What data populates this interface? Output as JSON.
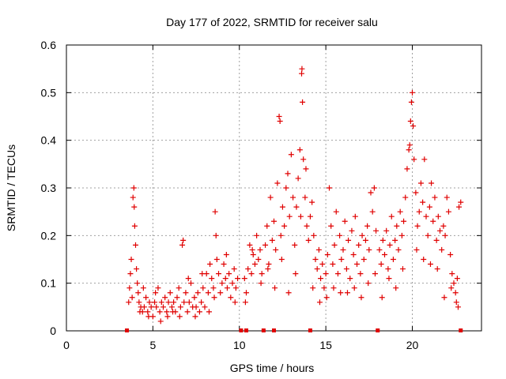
{
  "chart_data": {
    "type": "scatter",
    "title": "Day 177 of 2022, SRMTID for receiver salu",
    "xlabel": "GPS time / hours",
    "ylabel": "SRMTID / TECUs",
    "xlim": [
      0,
      24
    ],
    "ylim": [
      0,
      0.6
    ],
    "x_ticks": [
      0,
      5,
      10,
      15,
      20
    ],
    "x_tick_labels": [
      "0",
      "5",
      "10",
      "15",
      "20"
    ],
    "y_ticks": [
      0,
      0.1,
      0.2,
      0.3,
      0.4,
      0.5,
      0.6
    ],
    "y_tick_labels": [
      "0",
      "0.1",
      "0.2",
      "0.3",
      "0.4",
      "0.5",
      "0.6"
    ],
    "grid": true,
    "marker": "+",
    "color": "#e00000",
    "series": [
      {
        "name": "SRMTID",
        "points": [
          [
            3.6,
            0.06
          ],
          [
            3.65,
            0.09
          ],
          [
            3.7,
            0.12
          ],
          [
            3.75,
            0.15
          ],
          [
            3.8,
            0.07
          ],
          [
            3.85,
            0.28
          ],
          [
            3.9,
            0.3
          ],
          [
            3.92,
            0.26
          ],
          [
            3.95,
            0.22
          ],
          [
            4.0,
            0.18
          ],
          [
            4.05,
            0.13
          ],
          [
            4.1,
            0.1
          ],
          [
            4.15,
            0.08
          ],
          [
            4.2,
            0.06
          ],
          [
            4.3,
            0.05
          ],
          [
            4.4,
            0.04
          ],
          [
            4.5,
            0.05
          ],
          [
            4.6,
            0.07
          ],
          [
            4.7,
            0.04
          ],
          [
            4.8,
            0.06
          ],
          [
            4.9,
            0.05
          ],
          [
            5.0,
            0.03
          ],
          [
            5.1,
            0.06
          ],
          [
            5.2,
            0.05
          ],
          [
            5.3,
            0.09
          ],
          [
            5.4,
            0.04
          ],
          [
            5.5,
            0.06
          ],
          [
            5.6,
            0.05
          ],
          [
            5.7,
            0.07
          ],
          [
            5.8,
            0.04
          ],
          [
            5.9,
            0.06
          ],
          [
            6.0,
            0.08
          ],
          [
            6.1,
            0.05
          ],
          [
            6.2,
            0.06
          ],
          [
            6.3,
            0.04
          ],
          [
            6.4,
            0.07
          ],
          [
            6.5,
            0.09
          ],
          [
            6.6,
            0.05
          ],
          [
            6.7,
            0.18
          ],
          [
            6.75,
            0.19
          ],
          [
            6.8,
            0.06
          ],
          [
            6.9,
            0.08
          ],
          [
            7.0,
            0.04
          ],
          [
            7.1,
            0.06
          ],
          [
            7.2,
            0.1
          ],
          [
            7.3,
            0.05
          ],
          [
            7.4,
            0.07
          ],
          [
            7.5,
            0.05
          ],
          [
            7.6,
            0.08
          ],
          [
            7.7,
            0.04
          ],
          [
            7.8,
            0.06
          ],
          [
            7.9,
            0.09
          ],
          [
            8.0,
            0.05
          ],
          [
            8.1,
            0.12
          ],
          [
            8.2,
            0.08
          ],
          [
            8.3,
            0.14
          ],
          [
            8.4,
            0.11
          ],
          [
            8.5,
            0.09
          ],
          [
            8.6,
            0.25
          ],
          [
            8.65,
            0.2
          ],
          [
            8.7,
            0.15
          ],
          [
            8.8,
            0.12
          ],
          [
            8.9,
            0.08
          ],
          [
            9.0,
            0.1
          ],
          [
            9.1,
            0.14
          ],
          [
            9.2,
            0.11
          ],
          [
            9.3,
            0.09
          ],
          [
            9.4,
            0.12
          ],
          [
            9.5,
            0.07
          ],
          [
            9.6,
            0.1
          ],
          [
            9.7,
            0.13
          ],
          [
            9.8,
            0.09
          ],
          [
            9.9,
            0.11
          ],
          [
            10.3,
            0.11
          ],
          [
            10.4,
            0.08
          ],
          [
            10.5,
            0.13
          ],
          [
            10.6,
            0.18
          ],
          [
            10.7,
            0.12
          ],
          [
            10.8,
            0.16
          ],
          [
            10.9,
            0.14
          ],
          [
            11.0,
            0.2
          ],
          [
            11.1,
            0.15
          ],
          [
            11.2,
            0.17
          ],
          [
            11.3,
            0.12
          ],
          [
            11.5,
            0.18
          ],
          [
            11.6,
            0.22
          ],
          [
            11.7,
            0.14
          ],
          [
            11.8,
            0.28
          ],
          [
            11.9,
            0.19
          ],
          [
            12.0,
            0.23
          ],
          [
            12.1,
            0.17
          ],
          [
            12.2,
            0.31
          ],
          [
            12.3,
            0.45
          ],
          [
            12.35,
            0.44
          ],
          [
            12.4,
            0.2
          ],
          [
            12.5,
            0.26
          ],
          [
            12.6,
            0.22
          ],
          [
            12.7,
            0.3
          ],
          [
            12.8,
            0.33
          ],
          [
            12.9,
            0.24
          ],
          [
            13.0,
            0.37
          ],
          [
            13.1,
            0.28
          ],
          [
            13.2,
            0.18
          ],
          [
            13.3,
            0.26
          ],
          [
            13.4,
            0.32
          ],
          [
            13.5,
            0.38
          ],
          [
            13.6,
            0.54
          ],
          [
            13.62,
            0.55
          ],
          [
            13.65,
            0.48
          ],
          [
            13.7,
            0.36
          ],
          [
            13.8,
            0.28
          ],
          [
            13.9,
            0.22
          ],
          [
            14.0,
            0.19
          ],
          [
            14.1,
            0.24
          ],
          [
            14.2,
            0.27
          ],
          [
            14.3,
            0.2
          ],
          [
            14.4,
            0.15
          ],
          [
            14.5,
            0.13
          ],
          [
            14.6,
            0.17
          ],
          [
            14.7,
            0.11
          ],
          [
            14.8,
            0.14
          ],
          [
            14.9,
            0.09
          ],
          [
            15.0,
            0.12
          ],
          [
            15.1,
            0.16
          ],
          [
            15.2,
            0.3
          ],
          [
            15.3,
            0.22
          ],
          [
            15.4,
            0.14
          ],
          [
            15.5,
            0.18
          ],
          [
            15.6,
            0.25
          ],
          [
            15.7,
            0.12
          ],
          [
            15.8,
            0.2
          ],
          [
            15.9,
            0.15
          ],
          [
            16.0,
            0.17
          ],
          [
            16.1,
            0.23
          ],
          [
            16.2,
            0.13
          ],
          [
            16.3,
            0.19
          ],
          [
            16.4,
            0.11
          ],
          [
            16.5,
            0.21
          ],
          [
            16.6,
            0.16
          ],
          [
            16.7,
            0.24
          ],
          [
            16.8,
            0.14
          ],
          [
            16.9,
            0.18
          ],
          [
            17.0,
            0.12
          ],
          [
            17.1,
            0.2
          ],
          [
            17.2,
            0.15
          ],
          [
            17.3,
            0.19
          ],
          [
            17.4,
            0.22
          ],
          [
            17.5,
            0.17
          ],
          [
            17.6,
            0.29
          ],
          [
            17.7,
            0.25
          ],
          [
            17.8,
            0.3
          ],
          [
            17.9,
            0.21
          ],
          [
            18.1,
            0.17
          ],
          [
            18.2,
            0.14
          ],
          [
            18.3,
            0.19
          ],
          [
            18.4,
            0.16
          ],
          [
            18.5,
            0.21
          ],
          [
            18.6,
            0.13
          ],
          [
            18.7,
            0.18
          ],
          [
            18.8,
            0.24
          ],
          [
            18.9,
            0.15
          ],
          [
            19.0,
            0.19
          ],
          [
            19.1,
            0.22
          ],
          [
            19.2,
            0.17
          ],
          [
            19.3,
            0.25
          ],
          [
            19.4,
            0.2
          ],
          [
            19.5,
            0.23
          ],
          [
            19.6,
            0.28
          ],
          [
            19.7,
            0.34
          ],
          [
            19.8,
            0.38
          ],
          [
            19.85,
            0.39
          ],
          [
            19.9,
            0.44
          ],
          [
            19.95,
            0.48
          ],
          [
            20.0,
            0.5
          ],
          [
            20.05,
            0.43
          ],
          [
            20.1,
            0.36
          ],
          [
            20.2,
            0.29
          ],
          [
            20.3,
            0.22
          ],
          [
            20.4,
            0.25
          ],
          [
            20.5,
            0.31
          ],
          [
            20.6,
            0.27
          ],
          [
            20.7,
            0.36
          ],
          [
            20.8,
            0.24
          ],
          [
            20.9,
            0.2
          ],
          [
            21.0,
            0.26
          ],
          [
            21.1,
            0.31
          ],
          [
            21.2,
            0.23
          ],
          [
            21.3,
            0.28
          ],
          [
            21.4,
            0.19
          ],
          [
            21.5,
            0.24
          ],
          [
            21.6,
            0.21
          ],
          [
            21.7,
            0.17
          ],
          [
            21.8,
            0.22
          ],
          [
            21.9,
            0.2
          ],
          [
            22.0,
            0.28
          ],
          [
            22.1,
            0.25
          ],
          [
            22.2,
            0.16
          ],
          [
            22.3,
            0.12
          ],
          [
            22.4,
            0.1
          ],
          [
            22.5,
            0.08
          ],
          [
            22.6,
            0.11
          ],
          [
            22.7,
            0.26
          ],
          [
            22.8,
            0.27
          ],
          [
            4.25,
            0.04
          ],
          [
            4.45,
            0.09
          ],
          [
            4.75,
            0.03
          ],
          [
            5.15,
            0.08
          ],
          [
            5.45,
            0.02
          ],
          [
            5.85,
            0.03
          ],
          [
            6.15,
            0.04
          ],
          [
            6.55,
            0.03
          ],
          [
            7.05,
            0.11
          ],
          [
            7.45,
            0.03
          ],
          [
            7.85,
            0.12
          ],
          [
            8.25,
            0.04
          ],
          [
            8.55,
            0.07
          ],
          [
            9.25,
            0.16
          ],
          [
            9.75,
            0.06
          ],
          [
            10.35,
            0.06
          ],
          [
            10.75,
            0.17
          ],
          [
            11.25,
            0.1
          ],
          [
            11.65,
            0.13
          ],
          [
            12.05,
            0.09
          ],
          [
            12.45,
            0.15
          ],
          [
            12.85,
            0.08
          ],
          [
            13.25,
            0.12
          ],
          [
            13.55,
            0.24
          ],
          [
            13.85,
            0.34
          ],
          [
            14.25,
            0.09
          ],
          [
            14.65,
            0.06
          ],
          [
            15.05,
            0.07
          ],
          [
            15.45,
            0.09
          ],
          [
            15.85,
            0.08
          ],
          [
            16.25,
            0.08
          ],
          [
            16.65,
            0.09
          ],
          [
            17.05,
            0.07
          ],
          [
            17.45,
            0.1
          ],
          [
            17.85,
            0.12
          ],
          [
            18.25,
            0.07
          ],
          [
            18.65,
            0.11
          ],
          [
            19.05,
            0.09
          ],
          [
            19.45,
            0.13
          ],
          [
            20.25,
            0.17
          ],
          [
            20.65,
            0.15
          ],
          [
            21.05,
            0.14
          ],
          [
            21.45,
            0.13
          ],
          [
            21.85,
            0.07
          ],
          [
            22.25,
            0.09
          ],
          [
            22.55,
            0.06
          ],
          [
            22.65,
            0.05
          ]
        ]
      }
    ],
    "zero_markers_x": [
      3.5,
      10.1,
      10.4,
      11.4,
      12.0,
      14.1,
      18.0,
      22.8
    ]
  }
}
